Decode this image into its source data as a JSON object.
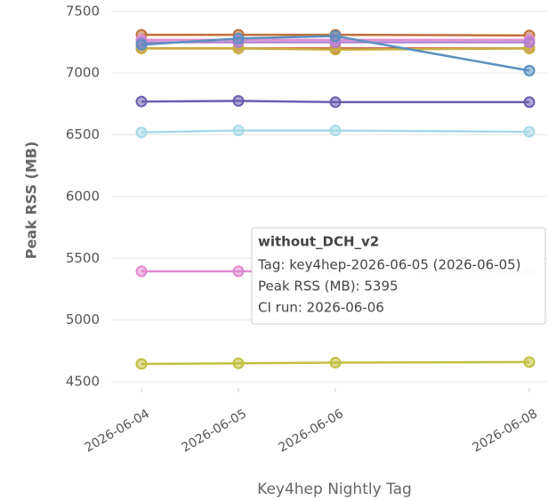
{
  "chart_data": {
    "type": "line",
    "ylabel": "Peak RSS (MB)",
    "xlabel": "Key4hep Nightly Tag",
    "x": [
      "2026-06-04",
      "2026-06-05",
      "2026-06-06",
      "2026-06-08"
    ],
    "xticks": [
      "2026-06-04",
      "2026-06-05",
      "2026-06-06",
      "2026-06-08"
    ],
    "ylim": [
      4450,
      7520
    ],
    "yticks": [
      4500,
      5000,
      5500,
      6000,
      6500,
      7000,
      7500
    ],
    "grid": true,
    "series": [
      {
        "color": "#c0703a",
        "values": [
          7310,
          7310,
          7310,
          7305
        ]
      },
      {
        "color": "#c8584a",
        "values": [
          7200,
          7200,
          7200,
          7200
        ]
      },
      {
        "color": "#c8b040",
        "values": [
          7200,
          7200,
          7190,
          7200
        ]
      },
      {
        "color": "#e090d0",
        "values": [
          7270,
          7270,
          7270,
          7270
        ]
      },
      {
        "color": "#b080d0",
        "values": [
          7250,
          7250,
          7250,
          7250
        ]
      },
      {
        "color": "#5b8fc0",
        "values": [
          7230,
          7280,
          7300,
          7020
        ]
      },
      {
        "color": "#6a5fb0",
        "values": [
          6770,
          6775,
          6765,
          6765
        ]
      },
      {
        "color": "#a8d8e8",
        "values": [
          6520,
          6535,
          6535,
          6525
        ]
      },
      {
        "name": "without_DCH_v2",
        "color": "#e08ad0",
        "values": [
          5395,
          5395,
          5395,
          5390
        ]
      },
      {
        "color": "#c0c040",
        "values": [
          4645,
          4650,
          4655,
          4660
        ]
      }
    ],
    "tooltip": {
      "title": "without_DCH_v2",
      "lines": [
        "Tag: key4hep-2026-06-05 (2026-06-05)",
        "Peak RSS (MB): 5395",
        "CI run: 2026-06-06"
      ]
    }
  }
}
